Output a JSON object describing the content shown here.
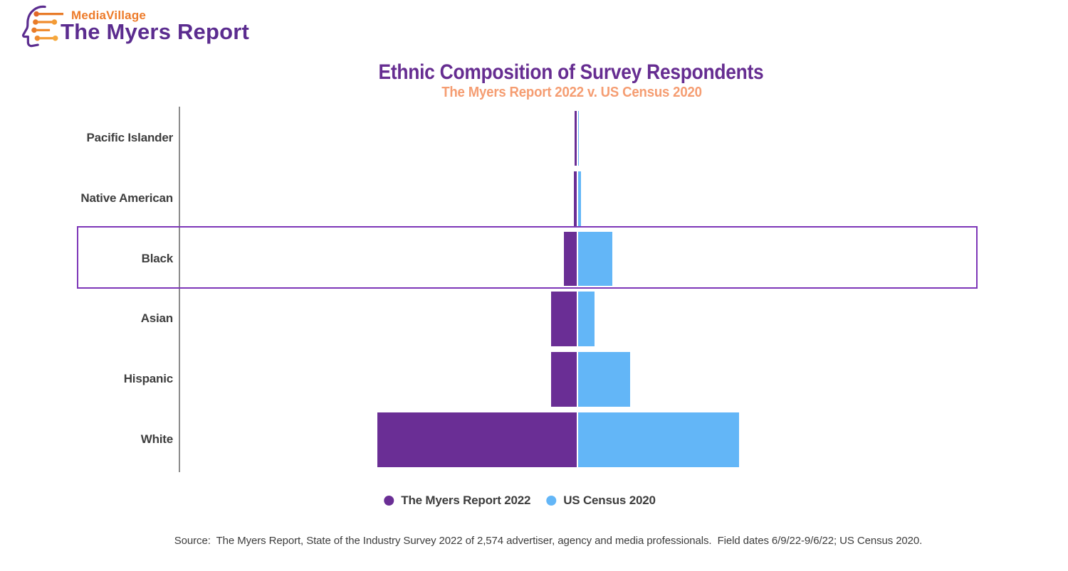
{
  "logo": {
    "brand": "MediaVillage",
    "title": "The Myers Report"
  },
  "header": {
    "title": "Ethnic Composition of Survey Respondents",
    "subtitle": "The Myers Report 2022 v. US Census 2020"
  },
  "chart_data": {
    "type": "bar",
    "orientation": "horizontal-diverging",
    "value_unit": "percent",
    "value_labels_shown": false,
    "grid": false,
    "legend_position": "bottom-center",
    "categories": [
      "Pacific Islander",
      "Native American",
      "Black",
      "Asian",
      "Hispanic",
      "White"
    ],
    "series": [
      {
        "name": "The Myers Report 2022",
        "color": "#6a2e95",
        "direction": "left",
        "values": [
          0.6,
          0.8,
          4.5,
          9.0,
          9.0,
          71.5
        ]
      },
      {
        "name": "US Census 2020",
        "color": "#63b6f7",
        "direction": "right",
        "values": [
          0.4,
          1.1,
          12.4,
          6.0,
          18.7,
          57.8
        ]
      }
    ],
    "highlighted_category": "Black",
    "highlight_color": "#7d36b8"
  },
  "legend": [
    {
      "label": "The Myers Report 2022",
      "color": "#6a2e95"
    },
    {
      "label": "US Census 2020",
      "color": "#63b6f7"
    }
  ],
  "footer": {
    "source": "Source:  The Myers Report, State of the Industry Survey 2022 of 2,574 advertiser, agency and media professionals.  Field dates 6/9/22-9/6/22; US Census 2020."
  },
  "colors": {
    "title": "#662d91",
    "subtitle": "#f59d72",
    "label_text": "#3e3e3e",
    "axis_line": "#8c8c8c",
    "logo_brand": "#ed7b2a",
    "logo_title": "#5b2c8f",
    "background": "#ffffff"
  }
}
